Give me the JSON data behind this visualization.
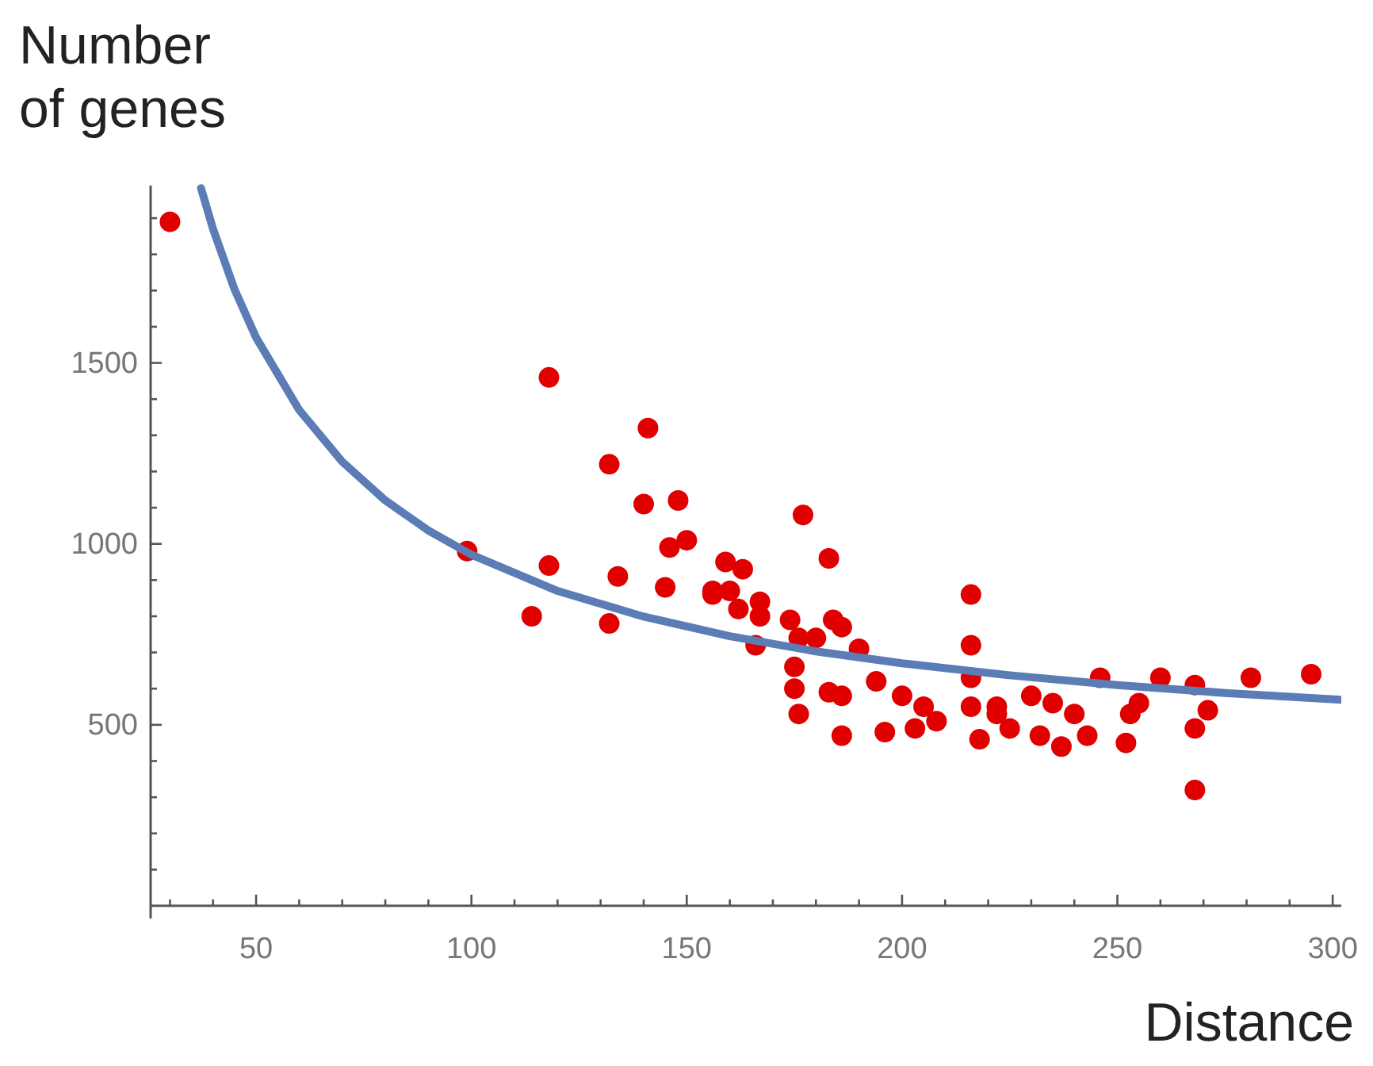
{
  "chart_data": {
    "type": "scatter",
    "ylabel": "Number of genes",
    "xlabel": "Distance",
    "xlim": [
      25.5,
      302
    ],
    "ylim": [
      0,
      1990
    ],
    "xticks": [
      {
        "value": 30,
        "label": null
      },
      {
        "value": 40,
        "label": null
      },
      50,
      {
        "value": 60,
        "label": null
      },
      {
        "value": 70,
        "label": null
      },
      {
        "value": 80,
        "label": null
      },
      {
        "value": 90,
        "label": null
      },
      100,
      {
        "value": 110,
        "label": null
      },
      {
        "value": 120,
        "label": null
      },
      {
        "value": 130,
        "label": null
      },
      {
        "value": 140,
        "label": null
      },
      150,
      {
        "value": 160,
        "label": null
      },
      {
        "value": 170,
        "label": null
      },
      {
        "value": 180,
        "label": null
      },
      {
        "value": 190,
        "label": null
      },
      200,
      {
        "value": 210,
        "label": null
      },
      {
        "value": 220,
        "label": null
      },
      {
        "value": 230,
        "label": null
      },
      {
        "value": 240,
        "label": null
      },
      250,
      {
        "value": 260,
        "label": null
      },
      {
        "value": 270,
        "label": null
      },
      {
        "value": 280,
        "label": null
      },
      {
        "value": 290,
        "label": null
      },
      300
    ],
    "yticks": [
      {
        "value": 100,
        "label": null
      },
      {
        "value": 200,
        "label": null
      },
      {
        "value": 300,
        "label": null
      },
      {
        "value": 400,
        "label": null
      },
      500,
      {
        "value": 600,
        "label": null
      },
      {
        "value": 700,
        "label": null
      },
      {
        "value": 800,
        "label": null
      },
      {
        "value": 900,
        "label": null
      },
      1000,
      {
        "value": 1100,
        "label": null
      },
      {
        "value": 1200,
        "label": null
      },
      {
        "value": 1300,
        "label": null
      },
      {
        "value": 1400,
        "label": null
      },
      1500,
      {
        "value": 1600,
        "label": null
      },
      {
        "value": 1700,
        "label": null
      },
      {
        "value": 1800,
        "label": null
      },
      {
        "value": 1900,
        "label": null
      }
    ],
    "grid": false,
    "series": [
      {
        "color": "#e00000",
        "marker": "circle",
        "x": [
          30,
          118,
          141,
          132,
          140,
          148,
          146,
          150,
          99,
          118,
          134,
          145,
          159,
          163,
          114,
          132,
          156,
          156,
          160,
          162,
          167,
          167,
          166,
          174,
          176,
          180,
          184,
          186,
          190,
          175,
          175,
          176,
          183,
          186,
          186,
          194,
          200,
          205,
          208,
          196,
          203,
          216,
          216,
          216,
          216,
          222,
          218,
          177,
          183,
          222,
          225,
          230,
          232,
          235,
          237,
          240,
          243,
          246,
          253,
          252,
          255,
          260,
          268,
          271,
          268,
          268,
          281,
          295
        ],
        "values": [
          1890,
          1460,
          1320,
          1220,
          1110,
          1120,
          990,
          1010,
          980,
          940,
          910,
          880,
          950,
          930,
          800,
          780,
          860,
          870,
          870,
          820,
          840,
          800,
          720,
          790,
          740,
          740,
          790,
          770,
          710,
          660,
          600,
          530,
          590,
          580,
          470,
          620,
          580,
          550,
          510,
          480,
          490,
          860,
          720,
          630,
          550,
          550,
          460,
          1080,
          960,
          530,
          490,
          580,
          470,
          560,
          440,
          530,
          470,
          630,
          530,
          450,
          560,
          630,
          610,
          540,
          490,
          320,
          630,
          640
        ]
      },
      {
        "type": "line",
        "color": "#5b7cb4",
        "marker": "none",
        "line_style": "solid",
        "x": [
          37.2,
          40,
          45,
          50,
          60,
          70,
          80,
          90,
          100,
          120,
          140,
          160,
          180,
          200,
          225,
          250,
          275,
          302
        ],
        "values": [
          1983,
          1870,
          1703,
          1570,
          1370,
          1227,
          1120,
          1037,
          970,
          870,
          799,
          745,
          703,
          670,
          637,
          610,
          588,
          569
        ]
      }
    ]
  }
}
